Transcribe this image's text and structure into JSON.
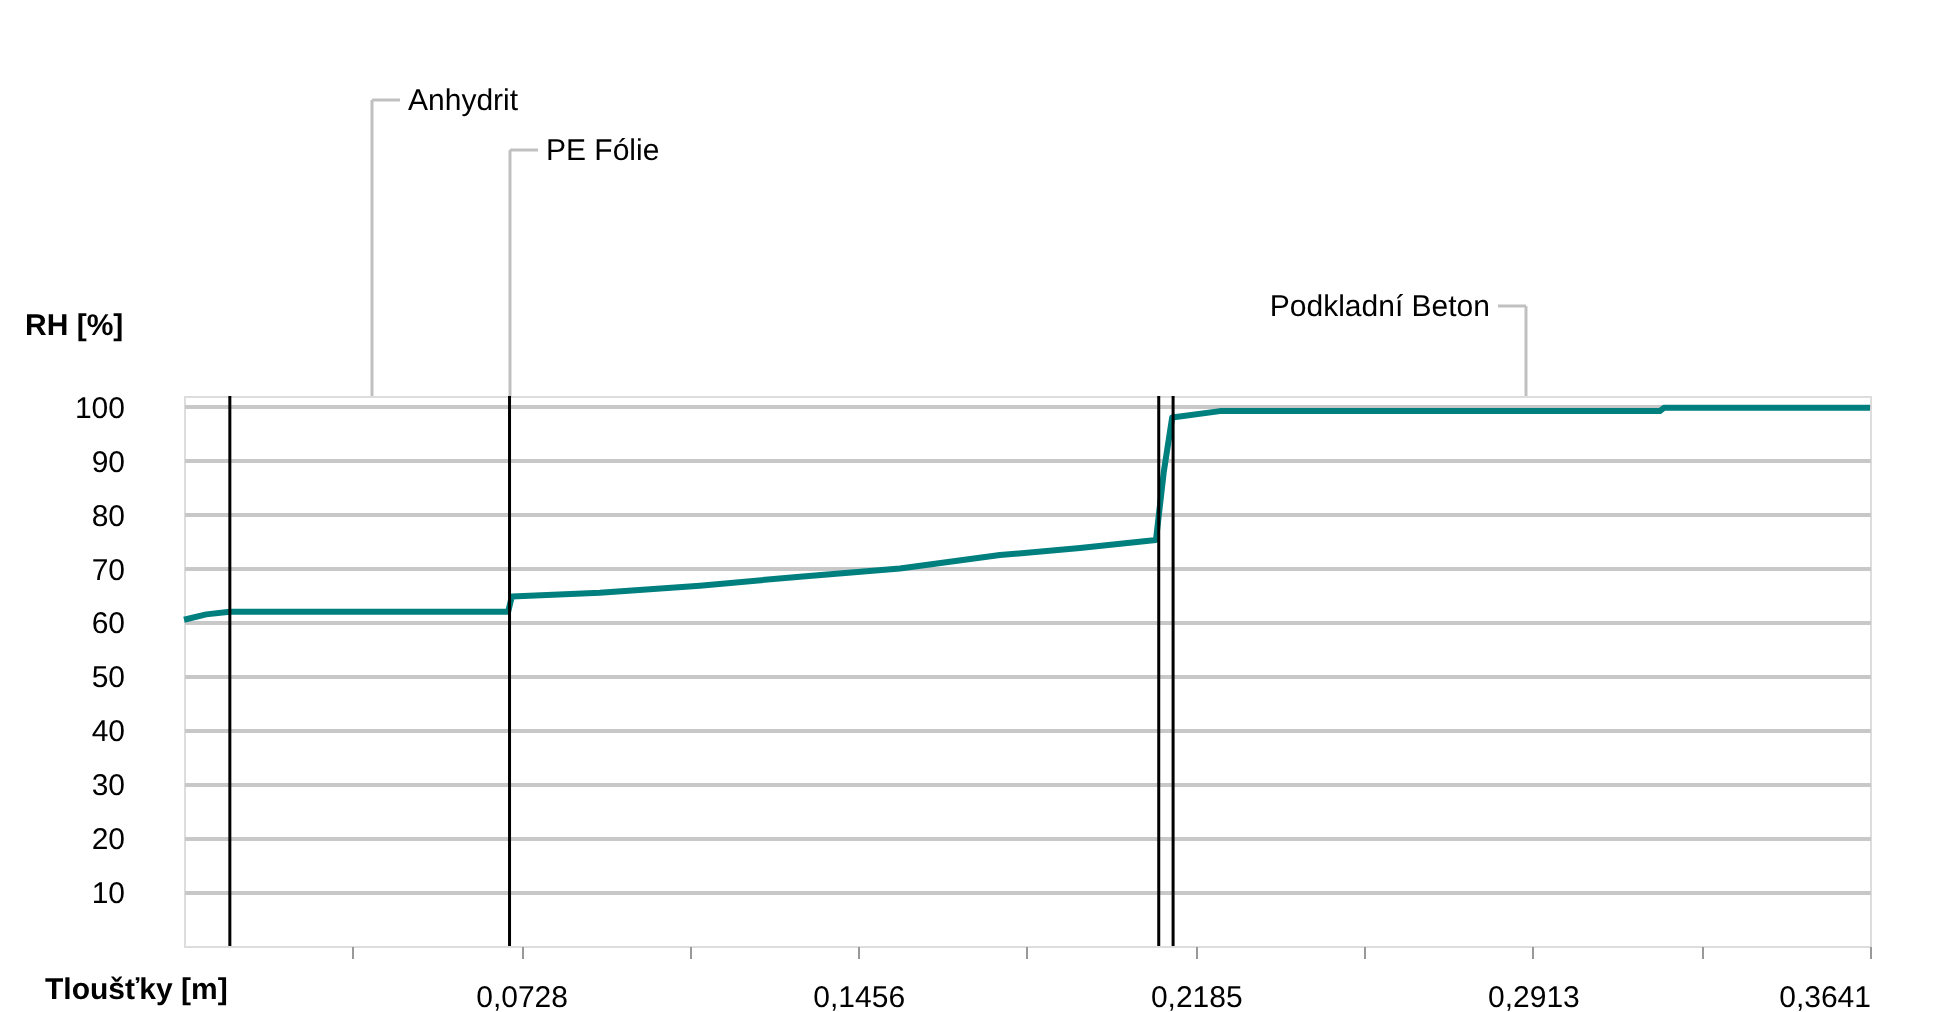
{
  "chart_data": {
    "type": "line",
    "xlabel": "Tloušťky [m]",
    "ylabel": "RH [%]",
    "series": [
      {
        "color": "#007f7f",
        "x": [
          0,
          0.0048,
          0.0099,
          0.07,
          0.0708,
          0.0898,
          0.1114,
          0.133,
          0.1546,
          0.1762,
          0.1935,
          0.2099,
          0.2116,
          0.2134,
          0.2237,
          0.3187,
          0.3196,
          0.3641
        ],
        "values": [
          60.5,
          61.5,
          62,
          62,
          64.8,
          65.5,
          66.8,
          68.5,
          70,
          72.5,
          73.8,
          75.3,
          88,
          98,
          99.2,
          99.2,
          99.8,
          99.8
        ]
      }
    ],
    "xlim": [
      0,
      0.3641
    ],
    "xticks": [
      {
        "value": 0.0364,
        "label": null
      },
      {
        "value": 0.0728,
        "label": "0,0728"
      },
      {
        "value": 0.1092,
        "label": null
      },
      {
        "value": 0.1456,
        "label": "0,1456"
      },
      {
        "value": 0.182,
        "label": null
      },
      {
        "value": 0.2185,
        "label": "0,2185"
      },
      {
        "value": 0.2549,
        "label": null
      },
      {
        "value": 0.2913,
        "label": "0,2913"
      },
      {
        "value": 0.3277,
        "label": null
      },
      {
        "value": 0.3641,
        "label": "0,3641"
      }
    ],
    "ylim": [
      0,
      102
    ],
    "yticks": [
      10,
      20,
      30,
      40,
      50,
      60,
      70,
      80,
      90,
      100
    ],
    "grid": "y",
    "ref_lines": [
      {
        "axis": "x",
        "value": 0.0099,
        "color": "#000000"
      },
      {
        "axis": "x",
        "value": 0.0703,
        "color": "#000000"
      },
      {
        "axis": "x",
        "value": 0.2105,
        "color": "#000000"
      },
      {
        "axis": "x",
        "value": 0.2136,
        "color": "#000000"
      }
    ],
    "annotations": [
      "Anhydrit",
      "PE Fólie",
      "Podkladní Beton"
    ]
  }
}
